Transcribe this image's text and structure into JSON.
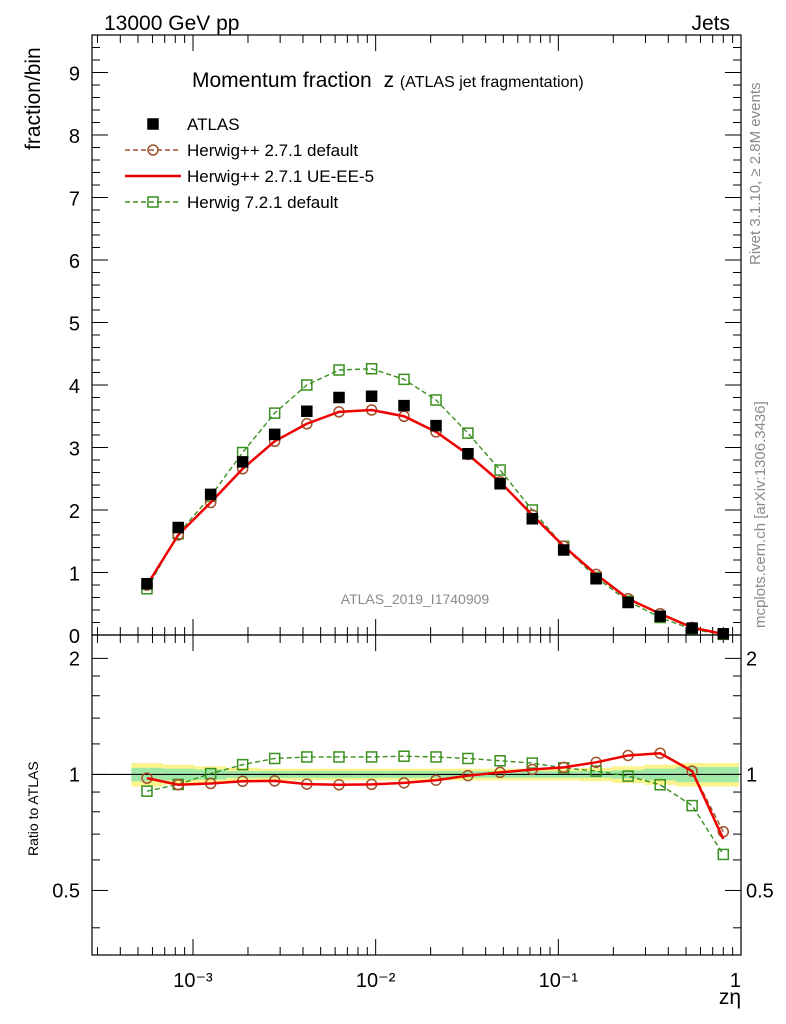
{
  "header": {
    "left": "13000 GeV pp",
    "right": "Jets"
  },
  "side_text": {
    "rivet": "Rivet 3.1.10, ≥ 2.8M events",
    "mcplots": "mcplots.cern.ch [arXiv:1306.3436]"
  },
  "chart_data": {
    "type": "line",
    "title": "Momentum fraction",
    "title_symbol": "z",
    "title_sub": "(ATLAS jet fragmentation)",
    "ylabel": "fraction/bin",
    "ratio_ylabel": "Ratio to ATLAS",
    "xlabel": "zη",
    "analysis_tag": "ATLAS_2019_I1740909",
    "x_scale": "log",
    "xlim": [
      0.00028,
      1.0
    ],
    "ylim": [
      0,
      9.6
    ],
    "ratio_ylim": [
      0.34,
      2.3
    ],
    "grid": false,
    "legend_position": "top-left",
    "x_tick_labels": [
      "10⁻³",
      "10⁻²",
      "10⁻¹",
      "1"
    ],
    "y_tick_labels": [
      "0",
      "1",
      "2",
      "3",
      "4",
      "5",
      "6",
      "7",
      "8",
      "9"
    ],
    "ratio_tick_labels": [
      "0.5",
      "1",
      "2"
    ],
    "x": [
      0.00056,
      0.00083,
      0.00125,
      0.00187,
      0.0028,
      0.0042,
      0.0063,
      0.0095,
      0.0143,
      0.0214,
      0.032,
      0.048,
      0.072,
      0.107,
      0.161,
      0.241,
      0.361,
      0.54,
      0.8
    ],
    "series": [
      {
        "name": "ATLAS",
        "color": "#000000",
        "marker": "filled-square",
        "values": [
          0.82,
          1.72,
          2.25,
          2.77,
          3.21,
          3.58,
          3.8,
          3.82,
          3.67,
          3.35,
          2.9,
          2.42,
          1.86,
          1.36,
          0.9,
          0.52,
          0.3,
          0.11,
          0.02
        ]
      },
      {
        "name": "Herwig++ 2.7.1 default",
        "color": "#a0522d",
        "marker": "open-circle",
        "dash": "dashed",
        "values": [
          0.8,
          1.6,
          2.12,
          2.66,
          3.1,
          3.38,
          3.57,
          3.6,
          3.5,
          3.25,
          2.89,
          2.45,
          1.92,
          1.42,
          0.97,
          0.58,
          0.34,
          0.12,
          0.015
        ],
        "ratio": [
          0.978,
          0.94,
          0.947,
          0.96,
          0.962,
          0.944,
          0.94,
          0.942,
          0.951,
          0.966,
          0.993,
          1.012,
          1.03,
          1.043,
          1.075,
          1.12,
          1.135,
          1.02,
          0.71
        ]
      },
      {
        "name": "Herwig++ 2.7.1 UE-EE-5",
        "color": "#ee0000",
        "marker": "none",
        "dash": "solid",
        "values": [
          0.8,
          1.6,
          2.12,
          2.66,
          3.1,
          3.38,
          3.57,
          3.6,
          3.5,
          3.25,
          2.89,
          2.45,
          1.92,
          1.42,
          0.97,
          0.58,
          0.34,
          0.12,
          0.015
        ],
        "ratio": [
          0.978,
          0.94,
          0.947,
          0.96,
          0.962,
          0.944,
          0.94,
          0.942,
          0.951,
          0.966,
          0.993,
          1.012,
          1.03,
          1.043,
          1.075,
          1.12,
          1.135,
          1.02,
          0.68
        ]
      },
      {
        "name": "Herwig 7.2.1 default",
        "color": "#3a8f1e",
        "marker": "open-square",
        "dash": "dashed",
        "values": [
          0.74,
          1.62,
          2.22,
          2.92,
          3.55,
          4.0,
          4.24,
          4.26,
          4.09,
          3.76,
          3.23,
          2.64,
          2.0,
          1.42,
          0.92,
          0.54,
          0.28,
          0.09,
          0.01
        ],
        "ratio": [
          0.905,
          0.942,
          1.005,
          1.06,
          1.1,
          1.11,
          1.11,
          1.11,
          1.115,
          1.11,
          1.1,
          1.085,
          1.07,
          1.04,
          1.02,
          0.99,
          0.94,
          0.83,
          0.62
        ]
      }
    ],
    "ratio_bands": {
      "yellow_halfwidth": [
        0.07,
        0.06,
        0.05,
        0.04,
        0.035,
        0.035,
        0.035,
        0.035,
        0.035,
        0.035,
        0.035,
        0.035,
        0.035,
        0.035,
        0.04,
        0.05,
        0.06,
        0.07,
        0.07
      ],
      "green_halfwidth": [
        0.04,
        0.035,
        0.03,
        0.02,
        0.02,
        0.02,
        0.02,
        0.02,
        0.02,
        0.02,
        0.02,
        0.02,
        0.02,
        0.02,
        0.02,
        0.025,
        0.035,
        0.045,
        0.045
      ]
    }
  }
}
